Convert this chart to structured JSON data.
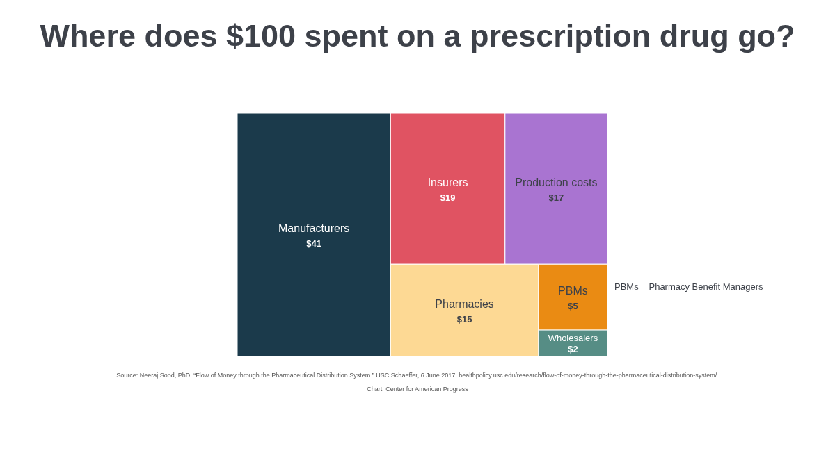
{
  "chart_data": {
    "type": "other",
    "title": "Where does $100 spent on a prescription drug go?",
    "categories": [
      "Manufacturers",
      "Insurers",
      "Production costs",
      "Pharmacies",
      "PBMs",
      "Wholesalers"
    ],
    "values": [
      41,
      19,
      17,
      15,
      5,
      2
    ],
    "value_labels": [
      "$41",
      "$19",
      "$17",
      "$15",
      "$5",
      "$2"
    ],
    "colors": [
      "#1b3a4b",
      "#e05362",
      "#a974d1",
      "#fdd994",
      "#ea8b13",
      "#568d85"
    ],
    "annotations": [
      "PBMs = Pharmacy Benefit Managers",
      "Source: Neeraj Sood, PhD. “Flow of Money through the Pharmaceutical Distribution System.” USC Schaeffer, 6 June 2017, healthpolicy.usc.edu/research/flow-of-money-through-the-pharmaceutical-distribution-system/.",
      "Chart: Center for American Progress"
    ]
  }
}
